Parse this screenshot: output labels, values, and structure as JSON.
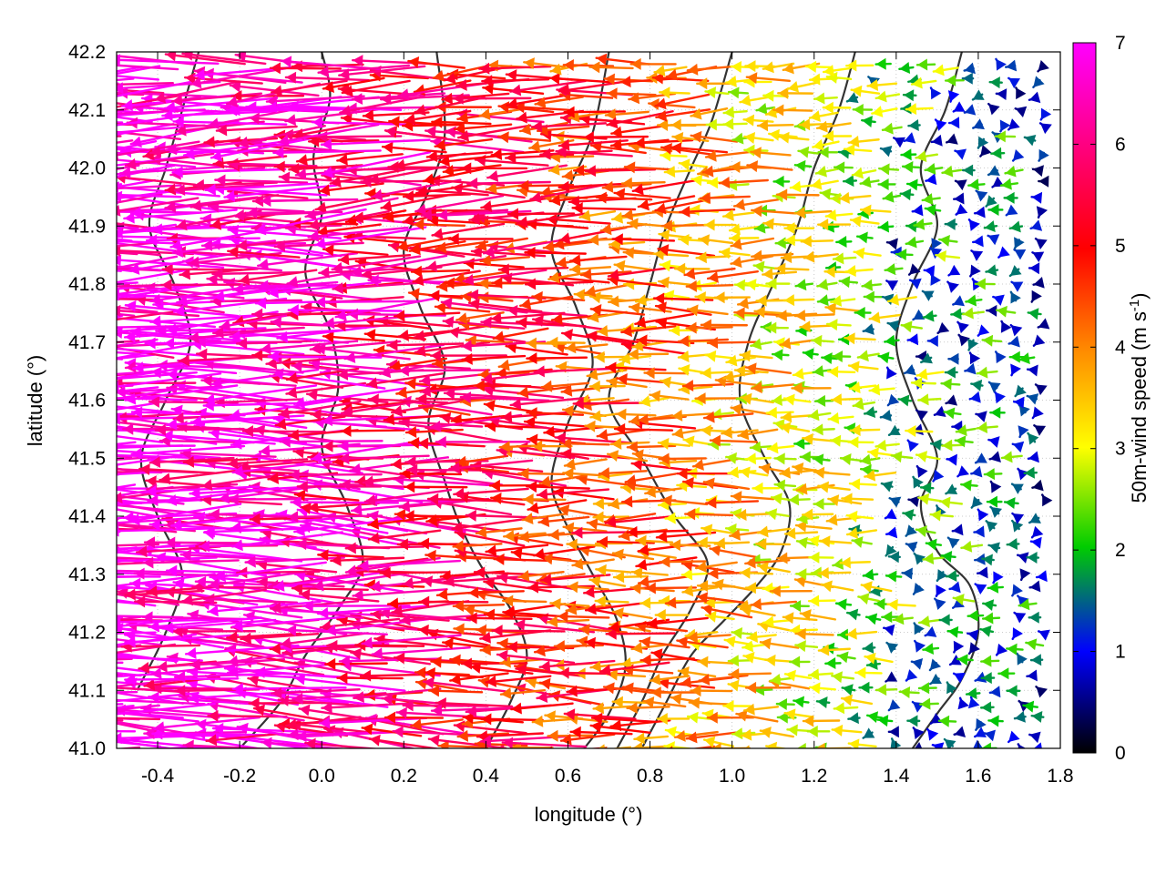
{
  "chart_data": {
    "type": "vector-field",
    "xlabel": "longitude (°)",
    "ylabel": "latitude (°)",
    "xlim": [
      -0.5,
      1.8
    ],
    "ylim": [
      41.0,
      42.2
    ],
    "xticks": [
      "-0.4",
      "-0.2",
      "0.0",
      "0.2",
      "0.4",
      "0.6",
      "0.8",
      "1.0",
      "1.2",
      "1.4",
      "1.6",
      "1.8"
    ],
    "yticks": [
      "41.0",
      "41.1",
      "41.2",
      "41.3",
      "41.4",
      "41.5",
      "41.6",
      "41.7",
      "41.8",
      "41.9",
      "42.0",
      "42.1",
      "42.2"
    ],
    "grid": true,
    "colorbar": {
      "label_main": "50m-wind speed (m s",
      "label_sup": "-1",
      "label_close": ")",
      "range": [
        0,
        7
      ],
      "ticks": [
        "0",
        "1",
        "2",
        "3",
        "4",
        "5",
        "6",
        "7"
      ],
      "colors": [
        "#000000",
        "#0000ff",
        "#00cc00",
        "#ffff00",
        "#ff8800",
        "#ff0000",
        "#ff00ff"
      ]
    },
    "wind_field": {
      "direction": "easterly (arrows point west)",
      "speed_by_longitude": [
        {
          "lon": -0.5,
          "speed": 7.0
        },
        {
          "lon": 0.0,
          "speed": 6.5
        },
        {
          "lon": 0.4,
          "speed": 5.5
        },
        {
          "lon": 0.8,
          "speed": 4.5
        },
        {
          "lon": 1.2,
          "speed": 3.0
        },
        {
          "lon": 1.5,
          "speed": 2.0
        },
        {
          "lon": 1.8,
          "speed": 1.2
        }
      ]
    },
    "contours": [
      {
        "name": "terrain-contour-1",
        "points": [
          [
            0.72,
            41.0
          ],
          [
            0.78,
            41.08
          ],
          [
            0.83,
            41.16
          ],
          [
            0.9,
            41.24
          ],
          [
            0.94,
            41.32
          ],
          [
            0.86,
            41.4
          ],
          [
            0.78,
            41.5
          ],
          [
            0.7,
            41.6
          ],
          [
            0.76,
            41.7
          ],
          [
            0.8,
            41.8
          ],
          [
            0.84,
            41.9
          ],
          [
            0.9,
            42.0
          ],
          [
            0.95,
            42.08
          ],
          [
            1.0,
            42.2
          ]
        ]
      },
      {
        "name": "terrain-contour-2",
        "points": [
          [
            0.78,
            41.0
          ],
          [
            0.84,
            41.08
          ],
          [
            0.9,
            41.16
          ],
          [
            0.98,
            41.22
          ],
          [
            1.06,
            41.28
          ],
          [
            1.12,
            41.34
          ],
          [
            1.14,
            41.42
          ],
          [
            1.08,
            41.5
          ],
          [
            1.02,
            41.6
          ],
          [
            1.04,
            41.7
          ],
          [
            1.1,
            41.8
          ],
          [
            1.16,
            41.9
          ],
          [
            1.2,
            42.0
          ],
          [
            1.26,
            42.1
          ],
          [
            1.3,
            42.2
          ]
        ]
      },
      {
        "name": "terrain-contour-3",
        "points": [
          [
            0.64,
            41.0
          ],
          [
            0.7,
            41.06
          ],
          [
            0.74,
            41.14
          ],
          [
            0.72,
            41.22
          ],
          [
            0.66,
            41.3
          ],
          [
            0.6,
            41.38
          ],
          [
            0.56,
            41.46
          ],
          [
            0.6,
            41.56
          ],
          [
            0.66,
            41.66
          ],
          [
            0.62,
            41.76
          ],
          [
            0.56,
            41.86
          ],
          [
            0.6,
            41.96
          ],
          [
            0.66,
            42.06
          ],
          [
            0.7,
            42.2
          ]
        ]
      },
      {
        "name": "terrain-contour-4",
        "points": [
          [
            0.4,
            41.0
          ],
          [
            0.46,
            41.08
          ],
          [
            0.5,
            41.16
          ],
          [
            0.46,
            41.24
          ],
          [
            0.4,
            41.3
          ],
          [
            0.34,
            41.38
          ],
          [
            0.3,
            41.46
          ],
          [
            0.26,
            41.56
          ],
          [
            0.3,
            41.66
          ],
          [
            0.24,
            41.76
          ],
          [
            0.2,
            41.86
          ],
          [
            0.26,
            41.96
          ],
          [
            0.3,
            42.06
          ],
          [
            0.28,
            42.2
          ]
        ]
      },
      {
        "name": "terrain-contour-5",
        "points": [
          [
            -0.2,
            41.0
          ],
          [
            -0.1,
            41.08
          ],
          [
            -0.04,
            41.16
          ],
          [
            0.04,
            41.24
          ],
          [
            0.1,
            41.32
          ],
          [
            0.06,
            41.42
          ],
          [
            0.0,
            41.52
          ],
          [
            0.04,
            41.62
          ],
          [
            0.02,
            41.72
          ],
          [
            -0.04,
            41.82
          ],
          [
            0.0,
            41.92
          ],
          [
            -0.02,
            42.02
          ],
          [
            0.02,
            42.12
          ],
          [
            0.0,
            42.2
          ]
        ]
      },
      {
        "name": "terrain-contour-6",
        "points": [
          [
            -0.45,
            41.1
          ],
          [
            -0.38,
            41.2
          ],
          [
            -0.34,
            41.3
          ],
          [
            -0.4,
            41.4
          ],
          [
            -0.44,
            41.5
          ],
          [
            -0.38,
            41.6
          ],
          [
            -0.32,
            41.7
          ],
          [
            -0.36,
            41.8
          ],
          [
            -0.42,
            41.9
          ],
          [
            -0.38,
            42.0
          ],
          [
            -0.34,
            42.1
          ],
          [
            -0.3,
            42.2
          ]
        ]
      },
      {
        "name": "terrain-contour-7",
        "points": [
          [
            1.44,
            41.0
          ],
          [
            1.5,
            41.06
          ],
          [
            1.56,
            41.12
          ],
          [
            1.6,
            41.2
          ],
          [
            1.58,
            41.28
          ],
          [
            1.5,
            41.34
          ],
          [
            1.46,
            41.42
          ],
          [
            1.5,
            41.5
          ],
          [
            1.44,
            41.6
          ],
          [
            1.4,
            41.7
          ],
          [
            1.44,
            41.8
          ],
          [
            1.5,
            41.9
          ],
          [
            1.46,
            42.0
          ],
          [
            1.52,
            42.1
          ],
          [
            1.56,
            42.2
          ]
        ]
      }
    ]
  }
}
